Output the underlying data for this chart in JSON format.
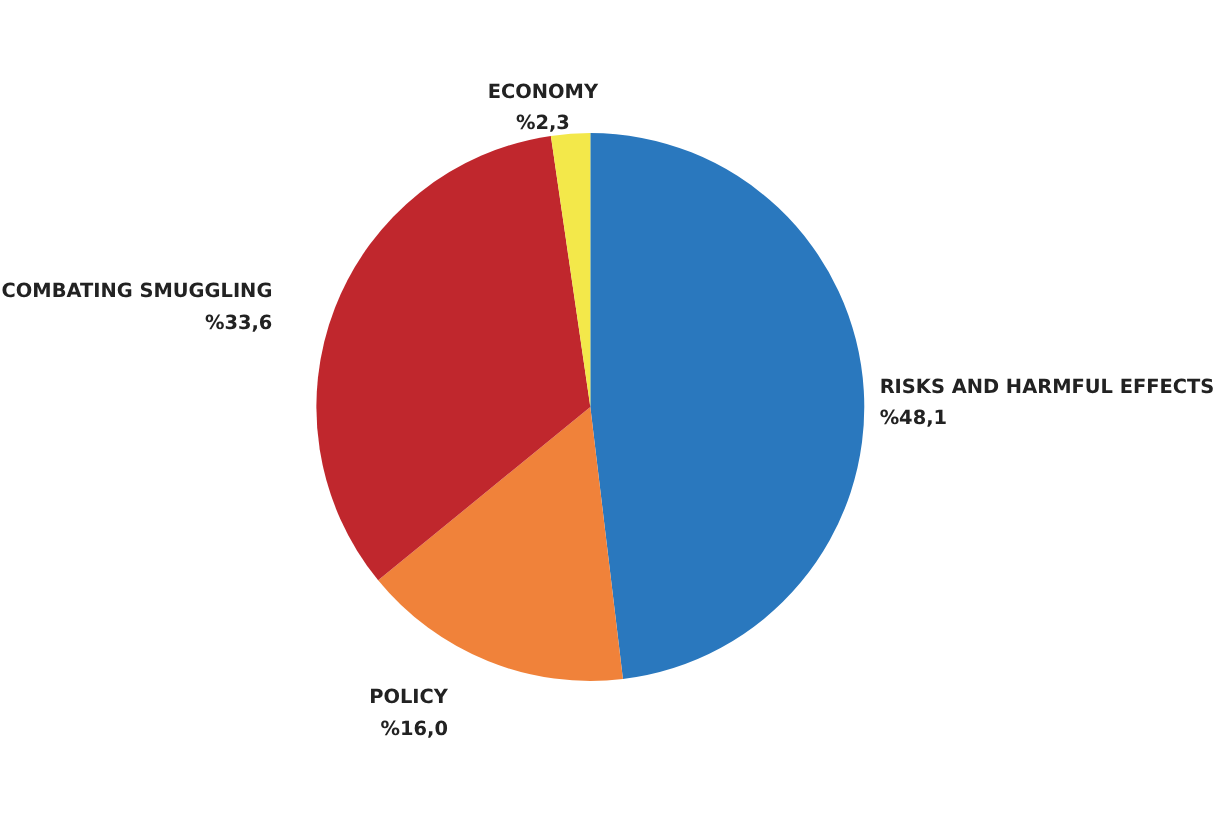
{
  "chart_data": {
    "type": "pie",
    "categories": [
      "RISKS AND HARMFUL EFFECTS",
      "POLICY",
      "COMBATING SMUGGLING",
      "ECONOMY"
    ],
    "values": [
      48.1,
      16.0,
      33.6,
      2.3
    ],
    "value_labels": [
      "%48,1",
      "%16,0",
      "%33,6",
      "%2,3"
    ],
    "colors": [
      "#2a78be",
      "#f0823a",
      "#c0272d",
      "#f3e84a"
    ],
    "legend": false
  }
}
